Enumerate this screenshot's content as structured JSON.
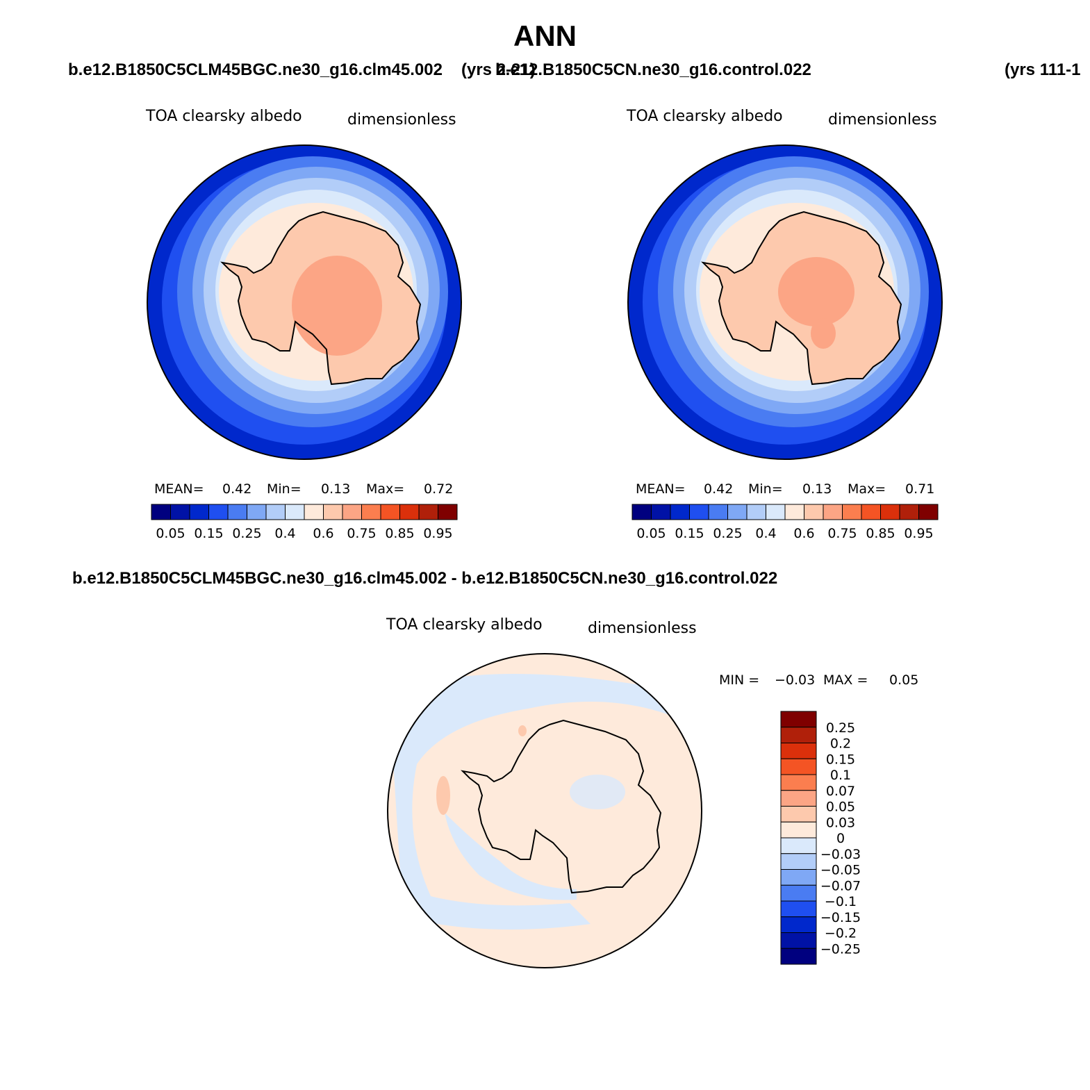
{
  "title": "ANN",
  "top_left_case": "b.e12.B1850C5CLM45BGC.ne30_g16.clm45.002",
  "top_left_years": "(yrs 2-21)",
  "top_right_case": "b.e12.B1850C5CN.ne30_g16.control.022",
  "top_right_years": "(yrs 111-1",
  "diff_case": "b.e12.B1850C5CLM45BGC.ne30_g16.clm45.002 - b.e12.B1850C5CN.ne30_g16.control.022",
  "panels": [
    {
      "variable": "TOA clearsky albedo",
      "units": "dimensionless",
      "mean_label": "MEAN=",
      "mean_value": "0.42",
      "min_label": "Min=",
      "min_value": "0.13",
      "max_label": "Max=",
      "max_value": "0.72"
    },
    {
      "variable": "TOA clearsky albedo",
      "units": "dimensionless",
      "mean_label": "MEAN=",
      "mean_value": "0.42",
      "min_label": "Min=",
      "min_value": "0.13",
      "max_label": "Max=",
      "max_value": "0.71"
    },
    {
      "variable": "TOA clearsky albedo",
      "units": "dimensionless",
      "min_label": "MIN =",
      "min_value": "−0.03",
      "max_label": "MAX =",
      "max_value": "0.05"
    }
  ],
  "abs_colorbar": {
    "colors": [
      "#00007f",
      "#0012a6",
      "#0028cc",
      "#1f4ff0",
      "#4a7cf2",
      "#7fa8f5",
      "#b2cdf8",
      "#dae9fb",
      "#feeadb",
      "#fdc9ad",
      "#fca585",
      "#fb7e4f",
      "#f45424",
      "#db300b",
      "#b0200a",
      "#7f0000"
    ],
    "ticks": [
      "0.05",
      "0.15",
      "0.25",
      "0.4",
      "0.6",
      "0.75",
      "0.85",
      "0.95"
    ]
  },
  "diff_colorbar": {
    "colors": [
      "#7f0000",
      "#b0200a",
      "#db300b",
      "#f45424",
      "#fb7e4f",
      "#fca585",
      "#fdc9ad",
      "#feeadb",
      "#dae9fb",
      "#b2cdf8",
      "#7fa8f5",
      "#4a7cf2",
      "#1f4ff0",
      "#0028cc",
      "#0012a6",
      "#00007f"
    ],
    "ticks": [
      "0.25",
      "0.2",
      "0.15",
      "0.1",
      "0.07",
      "0.05",
      "0.03",
      "0",
      "−0.03",
      "−0.05",
      "−0.07",
      "−0.1",
      "−0.15",
      "−0.2",
      "−0.25"
    ]
  }
}
